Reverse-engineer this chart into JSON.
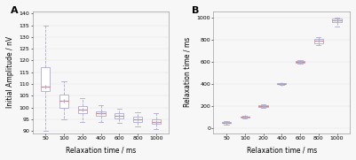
{
  "panel_A": {
    "xlabel": "Relaxation time / ms",
    "ylabel": "Initial Amplitude / nV",
    "ylim": [
      89,
      141
    ],
    "yticks": [
      90,
      95,
      100,
      105,
      110,
      115,
      120,
      125,
      130,
      135,
      140
    ],
    "categories": [
      "50",
      "100",
      "200",
      "400",
      "600",
      "800",
      "1000"
    ],
    "box_data": [
      {
        "med": 109,
        "q1": 107,
        "q3": 117,
        "whislo": 90,
        "whishi": 135
      },
      {
        "med": 103,
        "q1": 100,
        "q3": 105.5,
        "whislo": 95,
        "whishi": 111
      },
      {
        "med": 99,
        "q1": 97.5,
        "q3": 100.5,
        "whislo": 94,
        "whishi": 104
      },
      {
        "med": 97.5,
        "q1": 96.5,
        "q3": 98.5,
        "whislo": 94,
        "whishi": 101
      },
      {
        "med": 96.5,
        "q1": 95.5,
        "q3": 97.5,
        "whislo": 93.5,
        "whishi": 99.5
      },
      {
        "med": 95,
        "q1": 94,
        "q3": 96,
        "whislo": 92,
        "whishi": 98
      },
      {
        "med": 94,
        "q1": 93,
        "q3": 95,
        "whislo": 91,
        "whishi": 97.5
      }
    ],
    "box_color": "#aaaacc",
    "median_color": "#cc8888",
    "mean_color": "#aaaacc"
  },
  "panel_B": {
    "xlabel": "Relaxation time / ms",
    "ylabel": "Relaxation time / ms",
    "ylim": [
      -50,
      1060
    ],
    "yticks": [
      0,
      200,
      400,
      600,
      800,
      1000
    ],
    "categories": [
      "50",
      "100",
      "200",
      "400",
      "600",
      "800",
      "1000"
    ],
    "box_data": [
      {
        "med": 50,
        "q1": 44,
        "q3": 56,
        "whislo": 33,
        "whishi": 65
      },
      {
        "med": 100,
        "q1": 96,
        "q3": 104,
        "whislo": 90,
        "whishi": 110
      },
      {
        "med": 200,
        "q1": 194,
        "q3": 208,
        "whislo": 185,
        "whishi": 216
      },
      {
        "med": 400,
        "q1": 396,
        "q3": 404,
        "whislo": 389,
        "whishi": 411
      },
      {
        "med": 600,
        "q1": 592,
        "q3": 608,
        "whislo": 583,
        "whishi": 616
      },
      {
        "med": 795,
        "q1": 770,
        "q3": 810,
        "whislo": 750,
        "whishi": 825
      },
      {
        "med": 975,
        "q1": 963,
        "q3": 990,
        "whislo": 918,
        "whishi": 1002
      }
    ],
    "box_color": "#aaaacc",
    "median_color": "#cc8888",
    "mean_color": "#aaaacc"
  },
  "background_color": "#f7f7f7",
  "label_fontsize": 5.5,
  "tick_fontsize": 4.5,
  "panel_label_fontsize": 8
}
